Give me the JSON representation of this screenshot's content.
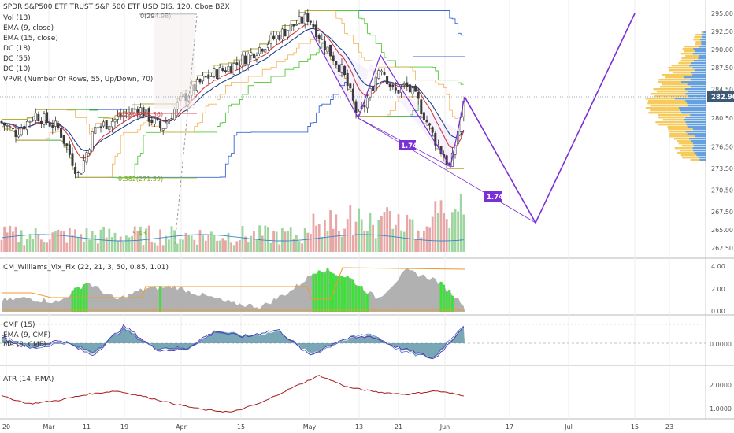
{
  "header": {
    "symbol_line": "SPDR S&P500 ETF TRUST S&P 500 ETF USD DIS, 120, Cboe BZX",
    "indicators": [
      "Vol (13)",
      "EMA (9, close)",
      "EMA (15, close)",
      "DC (18)",
      "DC (55)",
      "DC (10)",
      "VPVR (Number Of Rows, 55, Up/Down, 70)"
    ]
  },
  "price_axis": {
    "ticks": [
      "295.00",
      "292.50",
      "290.00",
      "287.50",
      "284.50",
      "282.90",
      "280.50",
      "276.50",
      "273.50",
      "270.50",
      "267.50",
      "265.00",
      "262.50"
    ],
    "current_price": "282.90"
  },
  "date_axis": [
    "20",
    "Mar",
    "11",
    "19",
    "Apr",
    "15",
    "May",
    "13",
    "21",
    "Jun",
    "17",
    "Jul",
    "15",
    "23"
  ],
  "annotations": {
    "fib_top": "0(294.98)",
    "fib_mid": "0.236(279.36)",
    "fib_low": "0.382(271.59)",
    "vol_label": "5.43",
    "pattern_tag_1": "1.74",
    "pattern_tag_2": "1.74"
  },
  "panels": {
    "vix": {
      "label": "CM_Williams_Vix_Fix (22, 21, 3, 50, 0.85, 1.01)",
      "ticks": [
        "4.00",
        "2.00",
        "0.00"
      ]
    },
    "cmf": {
      "label_1": "CMF (15)",
      "label_2": "EMA (9, CMF)",
      "label_3": "MA (8, CMF)",
      "ticks": [
        "0.0000"
      ]
    },
    "atr": {
      "label": "ATR (14, RMA)",
      "ticks": [
        "2.0000",
        "1.0000"
      ]
    }
  },
  "colors": {
    "up": "#26a69a",
    "down": "#d65b5b",
    "candle": "#3a3a3a",
    "ema_fast": "#d33d3d",
    "ema_slow": "#1f3f8f",
    "dc_outer": "#3a66d8",
    "dc_mid": "#53c83a",
    "dc_inner": "#f0a030",
    "pattern": "#7b2fd6",
    "vol_profile_up": "#4b8fd8",
    "vol_profile_down": "#f4c242",
    "vix_fill": "#9e9e9e",
    "vix_green": "#3ee03a",
    "vix_orange": "#f09a2a",
    "cmf_fill": "#4d8a9c",
    "atr": "#a51c1c",
    "price_tag": "#3c5a78"
  },
  "chart_data": [
    {
      "type": "line",
      "title": "SPDR S&P500 ETF TRUST S&P 500 ETF USD DIS, 120, Cboe BZX",
      "xlabel": "",
      "ylabel": "",
      "x": [
        "Feb 20",
        "Mar 1",
        "Mar 11",
        "Mar 19",
        "Apr 1",
        "Apr 15",
        "May 1",
        "May 13",
        "May 21",
        "Jun 1"
      ],
      "series": [
        {
          "values": [
            276.5,
            279.5,
            274.5,
            280.0,
            283.0,
            289.0,
            294.5,
            280.5,
            285.0,
            282.9
          ]
        }
      ],
      "ylim": [
        262.0,
        296.0
      ],
      "projection": [
        {
          "x": "Jun 3",
          "y": 282.9
        },
        {
          "x": "Jun 23",
          "y": 266.0
        },
        {
          "x": "Jul 15",
          "y": 295.0
        }
      ]
    },
    {
      "type": "area",
      "ylim": [
        0,
        4.2
      ],
      "values": [
        0.7,
        1.0,
        0.6,
        2.4,
        0.8,
        1.8,
        2.0,
        1.2,
        0.5,
        0.2,
        1.6,
        3.6,
        2.8,
        0.9,
        3.4,
        2.6,
        0.4
      ]
    },
    {
      "type": "area",
      "ylim": [
        -0.3,
        0.3
      ],
      "values": [
        0.08,
        -0.05,
        0.02,
        -0.12,
        0.18,
        -0.05,
        -0.08,
        0.15,
        0.08,
        0.14,
        -0.12,
        0.02,
        0.1,
        -0.08,
        -0.18,
        0.22
      ]
    },
    {
      "type": "line",
      "ylim": [
        0.8,
        2.6
      ],
      "values": [
        1.65,
        1.3,
        1.45,
        1.7,
        1.85,
        1.6,
        1.3,
        1.05,
        0.95,
        1.35,
        1.95,
        2.5,
        2.0,
        1.8,
        1.7,
        1.85,
        1.65
      ]
    }
  ]
}
